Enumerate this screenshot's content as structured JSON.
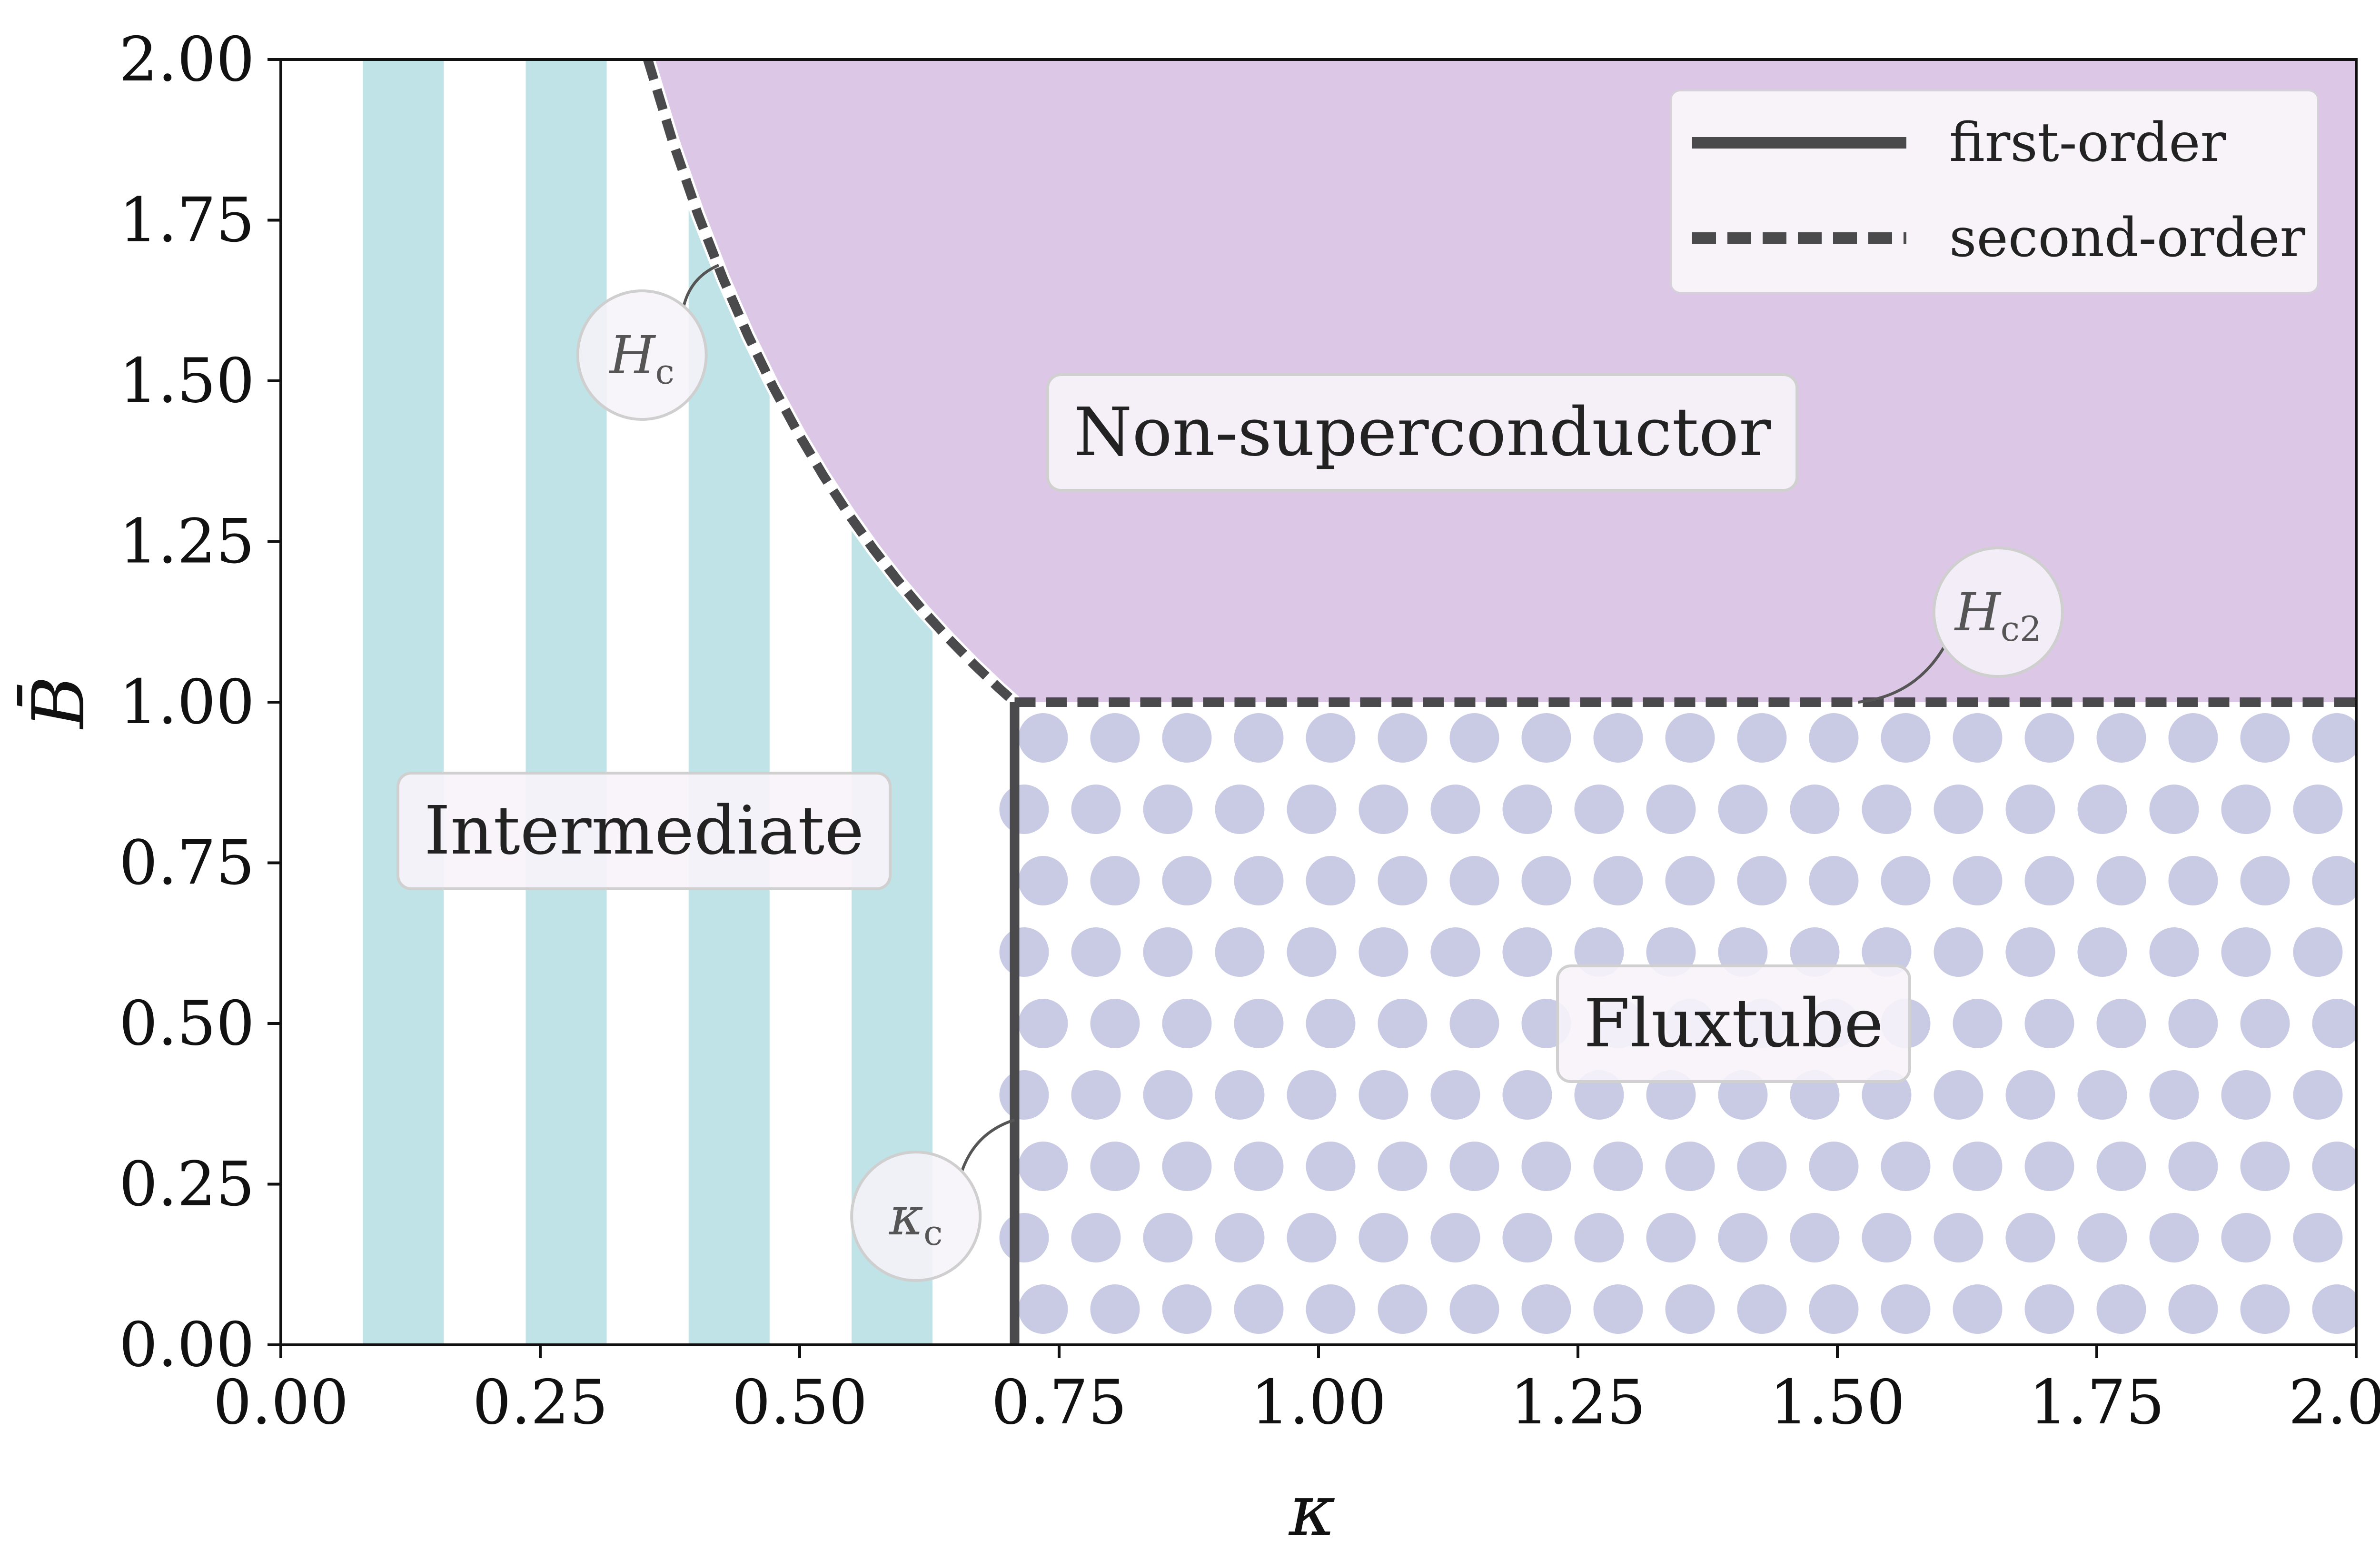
{
  "chart_data": {
    "type": "phase-diagram",
    "title": "",
    "xlabel": "κ",
    "ylabel": "B̄",
    "xlim": [
      0,
      2
    ],
    "ylim": [
      0,
      2
    ],
    "xticks": [
      "0.00",
      "0.25",
      "0.50",
      "0.75",
      "1.00",
      "1.25",
      "1.50",
      "1.75",
      "2.00"
    ],
    "yticks": [
      "0.00",
      "0.25",
      "0.50",
      "0.75",
      "1.00",
      "1.25",
      "1.50",
      "1.75",
      "2.00"
    ],
    "grid": false,
    "legend_position": "top-right",
    "legend": [
      {
        "label": "first-order",
        "style": "solid"
      },
      {
        "label": "second-order",
        "style": "dashed"
      }
    ],
    "kappa_c": 0.7071,
    "boundaries": {
      "Hc_curve": {
        "style": "dashed",
        "x": [
          0.3536,
          0.3778,
          0.4019,
          0.4261,
          0.4503,
          0.4745,
          0.4986,
          0.5228,
          0.547,
          0.5711,
          0.5953,
          0.6195,
          0.6436,
          0.6678,
          0.692,
          0.7071
        ],
        "y": [
          2.0,
          1.8714,
          1.7593,
          1.6594,
          1.5702,
          1.4902,
          1.4182,
          1.3525,
          1.2927,
          1.2381,
          1.1878,
          1.1414,
          1.0987,
          1.0588,
          1.0218,
          1.0
        ]
      },
      "Hc2_line": {
        "style": "dashed",
        "x": [
          0.7071,
          2.0
        ],
        "y": [
          1.0,
          1.0
        ]
      },
      "kappa_c_line": {
        "style": "solid",
        "x": [
          0.7071,
          0.7071
        ],
        "y": [
          0.0,
          1.0
        ]
      }
    },
    "regions": [
      {
        "name": "Non-superconductor",
        "label_x": 1.1,
        "label_y": 1.42
      },
      {
        "name": "Intermediate",
        "label_x": 0.35,
        "label_y": 0.8
      },
      {
        "name": "Fluxtube",
        "label_x": 1.4,
        "label_y": 0.5
      }
    ],
    "intermediate_stripes_kappa": [
      [
        0.079,
        0.157
      ],
      [
        0.236,
        0.314
      ],
      [
        0.393,
        0.471
      ],
      [
        0.55,
        0.628
      ]
    ],
    "callouts": [
      {
        "text": "H",
        "sub": "c",
        "anchor_x": 0.422,
        "anchor_y": 1.68,
        "label_x": 0.348,
        "label_y": 1.54
      },
      {
        "text": "H",
        "sub": "c2",
        "anchor_x": 1.52,
        "anchor_y": 1.0,
        "label_x": 1.655,
        "label_y": 1.14
      },
      {
        "text": "κ",
        "sub": "c",
        "anchor_x": 0.707,
        "anchor_y": 0.35,
        "label_x": 0.612,
        "label_y": 0.2
      }
    ],
    "colors": {
      "non_superconductor": "#dcc8e6",
      "stripes": "#bfe3e6",
      "dots": "#c9cbe4",
      "lines": "#4a4a4c",
      "label_box_fill": "#f7f3f9",
      "label_box_stroke": "#d0d0d0"
    }
  }
}
